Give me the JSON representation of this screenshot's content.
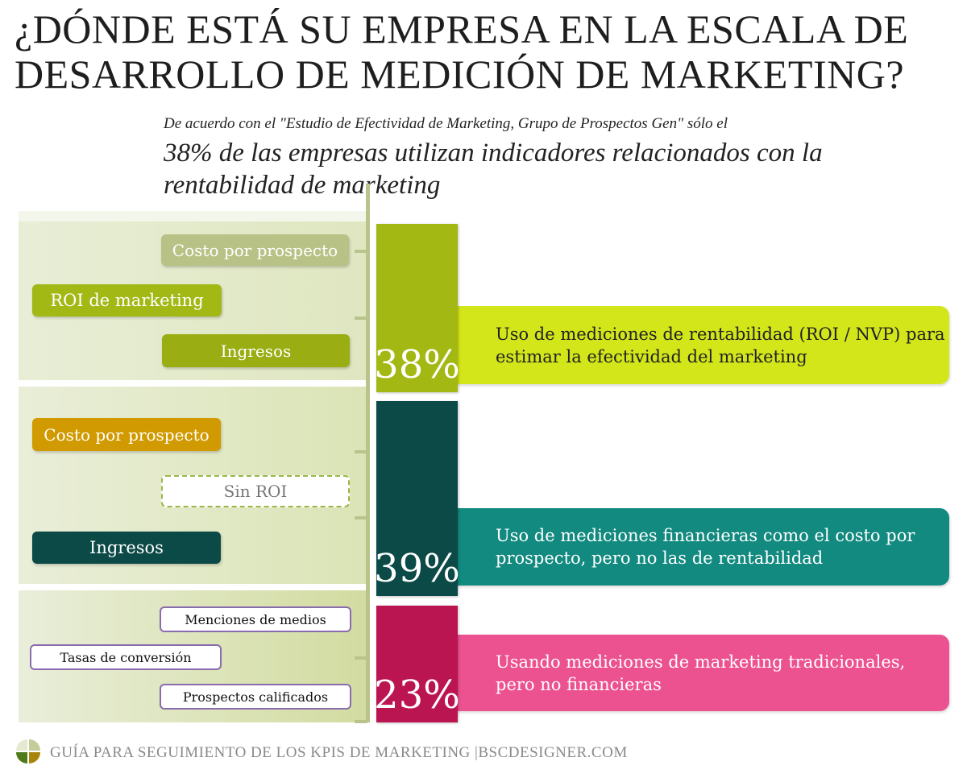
{
  "title": "¿DÓNDE ESTÁ SU EMPRESA EN LA ESCALA DE DESARROLLO DE MEDICIÓN DE MARKETING?",
  "subtitle_source": "De acuerdo con el \"Estudio de Efectividad de Marketing, Grupo de Prospectos Gen\" sólo el",
  "subtitle_main": "38% de las empresas utilizan indicadores relacionados con la rentabilidad de marketing",
  "levels": [
    {
      "percent": "38%",
      "value": 38,
      "color": "#a3b813",
      "callout_color": "#d3e61a",
      "description": "Uso de mediciones de rentabilidad (ROI / NVP) para estimar la efectividad del marketing",
      "metrics": [
        "Costo por prospecto",
        "ROI de marketing",
        "Ingresos"
      ]
    },
    {
      "percent": "39%",
      "value": 39,
      "color": "#0b4a47",
      "callout_color": "#128a80",
      "description": "Uso de mediciones financieras como el costo por prospecto, pero no las de rentabilidad",
      "metrics": [
        "Costo por prospecto",
        "Sin ROI",
        "Ingresos"
      ]
    },
    {
      "percent": "23%",
      "value": 23,
      "color": "#bb1551",
      "callout_color": "#ec5190",
      "description": "Usando mediciones de marketing tradicionales, pero no financieras",
      "metrics": [
        "Menciones de medios",
        "Tasas de conversión",
        "Prospectos calificados"
      ]
    }
  ],
  "footer": "GUÍA PARA SEGUIMIENTO DE LOS KPIS DE MARKETING |BSCDESIGNER.COM"
}
